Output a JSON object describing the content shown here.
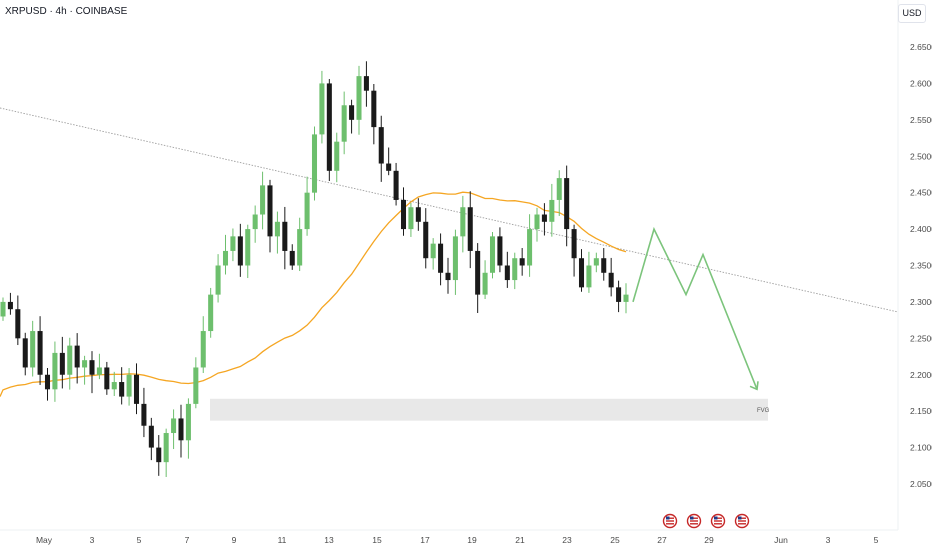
{
  "header": {
    "symbol_title": "XRPUSD · 4h · COINBASE",
    "currency": "USD"
  },
  "colors": {
    "up": "#6dbf6d",
    "down": "#1a1a1a",
    "ma": "#f5a623",
    "trend": "#9e9e9e",
    "projection": "#7cc47c",
    "fvg": "#e8e8e8",
    "axis_text": "#4a4a4a"
  },
  "fvg_label": "FVG",
  "event_icons": [
    "us-flag-icon",
    "us-flag-icon",
    "us-flag-icon",
    "us-flag-icon"
  ],
  "chart_data": {
    "type": "candlestick",
    "title": "XRPUSD · 4h · COINBASE",
    "y_ticks": [
      "2.6500",
      "2.6000",
      "2.5500",
      "2.5000",
      "2.4500",
      "2.4000",
      "2.3500",
      "2.3000",
      "2.2500",
      "2.2000",
      "2.1500",
      "2.1000",
      "2.0500"
    ],
    "x_ticks": [
      "May",
      "3",
      "5",
      "7",
      "9",
      "11",
      "13",
      "15",
      "17",
      "19",
      "21",
      "23",
      "25",
      "27",
      "29",
      "Jun",
      "3",
      "5"
    ],
    "ylim": [
      2.02,
      2.68
    ],
    "candles_close": [
      2.3,
      2.29,
      2.25,
      2.21,
      2.26,
      2.2,
      2.18,
      2.23,
      2.2,
      2.24,
      2.21,
      2.22,
      2.2,
      2.21,
      2.18,
      2.19,
      2.17,
      2.2,
      2.16,
      2.13,
      2.1,
      2.08,
      2.12,
      2.14,
      2.11,
      2.16,
      2.21,
      2.26,
      2.31,
      2.35,
      2.37,
      2.39,
      2.35,
      2.4,
      2.42,
      2.46,
      2.39,
      2.41,
      2.37,
      2.35,
      2.4,
      2.45,
      2.53,
      2.6,
      2.48,
      2.52,
      2.57,
      2.55,
      2.61,
      2.59,
      2.54,
      2.49,
      2.48,
      2.44,
      2.4,
      2.43,
      2.41,
      2.36,
      2.38,
      2.34,
      2.33,
      2.39,
      2.43,
      2.37,
      2.31,
      2.34,
      2.39,
      2.35,
      2.33,
      2.36,
      2.35,
      2.4,
      2.42,
      2.41,
      2.44,
      2.47,
      2.4,
      2.36,
      2.32,
      2.35,
      2.36,
      2.34,
      2.32,
      2.3,
      2.31
    ],
    "ma_label": "moving average",
    "fvg_range": [
      2.137,
      2.167
    ],
    "trendline": {
      "start": [
        "Apr 30",
        2.57
      ],
      "end": [
        "Jun 5",
        2.3
      ]
    },
    "projection_path": [
      2.3,
      2.4,
      2.31,
      2.365,
      2.18
    ]
  }
}
